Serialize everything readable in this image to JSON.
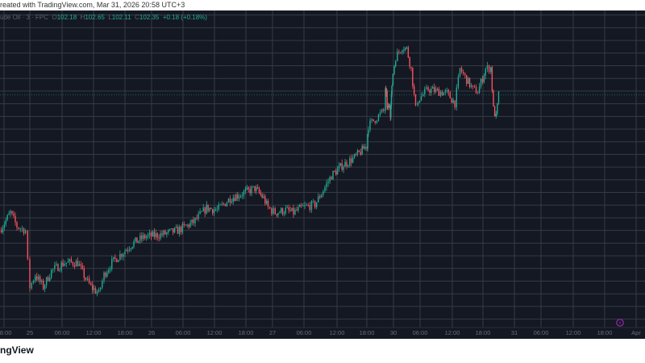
{
  "header": {
    "caption": "reated with TradingView.com, Mar 31, 2026 20:58 UTC+3"
  },
  "legend": {
    "symbol": "ude Oil · 3 · FPC",
    "o_label": "O",
    "open": "102.18",
    "h_label": "H",
    "high": "102.65",
    "l_label": "L",
    "low": "102.11",
    "c_label": "C",
    "close": "102.35",
    "change": "+0.18 (+0.18%)"
  },
  "footer": {
    "logo_text": "ngView"
  },
  "colors": {
    "background": "#141823",
    "grid": "#363a45",
    "up": "#22ab94",
    "down": "#f7525f",
    "marker": "#9c27b0"
  },
  "marker": {
    "icon": "lightning-event-icon"
  },
  "chart_data": {
    "type": "candlestick",
    "title": "",
    "grid": true,
    "price_step": 0.5,
    "ylim": [
      93.17,
      105.68
    ],
    "x_tick_labels": [
      "18:00",
      "25",
      "06:00",
      "12:00",
      "18:00",
      "26",
      "06:00",
      "12:00",
      "18:00",
      "27",
      "06:00",
      "12:00",
      "18:00",
      "30",
      "06:00",
      "12:00",
      "18:00",
      "31",
      "06:00",
      "12:00",
      "18:00",
      "Apr"
    ],
    "last_price": 102.35,
    "close_path": [
      [
        "03-24 17:00",
        97.0
      ],
      [
        "03-24 19:30",
        97.7
      ],
      [
        "03-24 21:00",
        97.16
      ],
      [
        "03-24 23:00",
        97.0
      ],
      [
        "03-24 23:30",
        95.73
      ],
      [
        "03-25 00:00",
        94.77
      ],
      [
        "03-25 01:00",
        95.25
      ],
      [
        "03-25 02:30",
        94.77
      ],
      [
        "03-25 04:00",
        95.41
      ],
      [
        "03-25 06:30",
        95.73
      ],
      [
        "03-25 09:00",
        95.73
      ],
      [
        "03-25 10:30",
        95.09
      ],
      [
        "03-25 11:30",
        94.77
      ],
      [
        "03-25 13:00",
        94.52
      ],
      [
        "03-25 14:00",
        95.25
      ],
      [
        "03-25 15:30",
        95.73
      ],
      [
        "03-25 18:00",
        96.21
      ],
      [
        "03-25 20:00",
        96.52
      ],
      [
        "03-25 22:30",
        96.75
      ],
      [
        "03-26 02:00",
        96.84
      ],
      [
        "03-26 05:00",
        97.0
      ],
      [
        "03-26 08:00",
        97.32
      ],
      [
        "03-26 10:30",
        97.89
      ],
      [
        "03-26 12:30",
        97.8
      ],
      [
        "03-26 15:00",
        98.27
      ],
      [
        "03-26 17:00",
        98.43
      ],
      [
        "03-26 20:00",
        98.66
      ],
      [
        "03-26 22:00",
        98.27
      ],
      [
        "03-26 23:00",
        97.89
      ],
      [
        "03-27 00:30",
        97.7
      ],
      [
        "03-27 02:30",
        97.8
      ],
      [
        "03-27 04:00",
        97.7
      ],
      [
        "03-27 05:30",
        97.89
      ],
      [
        "03-27 08:00",
        98.02
      ],
      [
        "03-27 09:30",
        98.59
      ],
      [
        "03-27 11:00",
        99.17
      ],
      [
        "03-27 13:00",
        99.55
      ],
      [
        "03-27 15:30",
        99.87
      ],
      [
        "03-27 18:00",
        100.34
      ],
      [
        "03-27 20:30",
        100.82
      ],
      [
        "03-27 22:30",
        101.14
      ],
      [
        "03-30 00:00",
        101.78
      ],
      [
        "03-30 00:30",
        102.48
      ],
      [
        "03-30 02:00",
        102.25
      ],
      [
        "03-30 04:00",
        102.57
      ],
      [
        "03-30 05:30",
        101.78
      ],
      [
        "03-30 07:30",
        101.71
      ],
      [
        "03-30 09:00",
        101.94
      ],
      [
        "03-30 11:00",
        101.78
      ],
      [
        "03-30 13:30",
        101.94
      ],
      [
        "03-30 15:00",
        101.62
      ],
      [
        "03-30 16:30",
        102.1
      ],
      [
        "03-30 18:00",
        102.35
      ],
      [
        "03-30 19:30",
        102.57
      ],
      [
        "03-30 21:30",
        102.8
      ],
      [
        "03-30 22:30",
        103.21
      ],
      [
        "03-31 00:30",
        103.85
      ],
      [
        "03-31 02:00",
        104.26
      ],
      [
        "03-31 03:00",
        104.16
      ],
      [
        "03-31 04:00",
        103.37
      ],
      [
        "03-31 05:00",
        101.78
      ],
      [
        "03-31 05:30",
        102.16
      ],
      [
        "03-31 07:30",
        102.57
      ],
      [
        "03-31 09:30",
        102.48
      ],
      [
        "03-31 11:00",
        102.41
      ],
      [
        "03-31 12:30",
        102.03
      ],
      [
        "03-31 13:30",
        103.37
      ],
      [
        "03-31 14:30",
        103.05
      ],
      [
        "03-31 16:00",
        102.57
      ],
      [
        "03-31 17:00",
        102.48
      ],
      [
        "03-31 18:30",
        103.37
      ],
      [
        "03-31 19:30",
        103.43
      ],
      [
        "03-31 20:00",
        101.78
      ],
      [
        "03-31 20:30",
        101.46
      ],
      [
        "03-31 21:00",
        102.35
      ]
    ]
  }
}
